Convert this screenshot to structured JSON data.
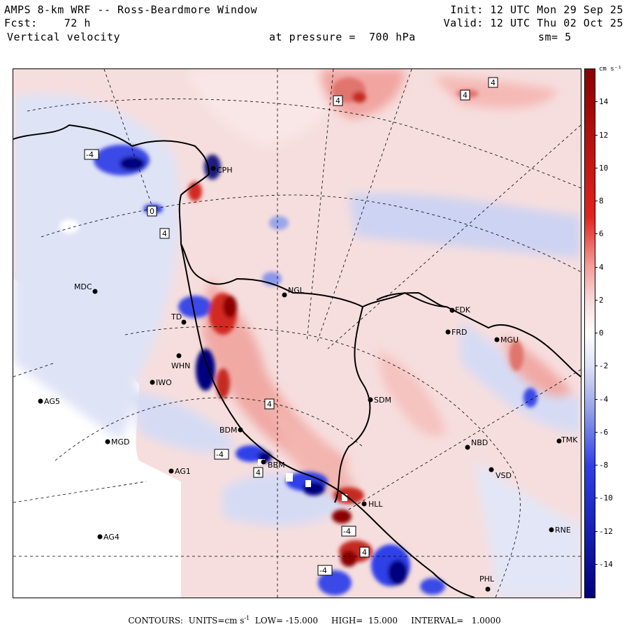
{
  "header": {
    "title": "AMPS 8-km WRF -- Ross-Beardmore Window",
    "fcst": "Fcst:    72 h",
    "field": "Vertical velocity",
    "init": "Init: 12 UTC Mon 29 Sep 25",
    "valid": "Valid: 12 UTC Thu 02 Oct 25",
    "level": "at pressure =  700 hPa",
    "smooth": "sm= 5"
  },
  "colorbar": {
    "units": "cm s⁻¹",
    "ticks": [
      "14",
      "12",
      "10",
      "8",
      "6",
      "4",
      "2",
      "0",
      "-2",
      "-4",
      "-6",
      "-8",
      "-10",
      "-12",
      "-14"
    ],
    "range": [
      -16,
      16
    ],
    "colors": {
      "max": "#8b0000",
      "strong_pos": "#e4231f",
      "mid_pos": "#f59a96",
      "weak_pos": "#f7dcdc",
      "zero": "#ffffff",
      "weak_neg": "#dfe3f6",
      "mid_neg": "#9aa5ea",
      "strong_neg": "#2f3fe8",
      "min": "#00007f"
    }
  },
  "stations": [
    {
      "name": "MDC",
      "icon": "station-dot"
    },
    {
      "name": "NGL",
      "icon": "station-dot"
    },
    {
      "name": "CPH",
      "icon": "station-dot"
    },
    {
      "name": "FDK",
      "icon": "station-dot"
    },
    {
      "name": "FRD",
      "icon": "station-dot"
    },
    {
      "name": "MGU",
      "icon": "station-dot"
    },
    {
      "name": "TD",
      "icon": "station-dot"
    },
    {
      "name": "WHN",
      "icon": "station-dot"
    },
    {
      "name": "IWO",
      "icon": "station-dot"
    },
    {
      "name": "AG5",
      "icon": "station-dot"
    },
    {
      "name": "SDM",
      "icon": "station-dot"
    },
    {
      "name": "BDM",
      "icon": "station-dot"
    },
    {
      "name": "MGD",
      "icon": "station-dot"
    },
    {
      "name": "AG1",
      "icon": "station-dot"
    },
    {
      "name": "NBD",
      "icon": "station-dot"
    },
    {
      "name": "TMK",
      "icon": "station-dot"
    },
    {
      "name": "VSD",
      "icon": "station-dot"
    },
    {
      "name": "HLL",
      "icon": "station-dot"
    },
    {
      "name": "RNE",
      "icon": "station-dot"
    },
    {
      "name": "AG4",
      "icon": "station-dot"
    },
    {
      "name": "PHL",
      "icon": "station-dot"
    },
    {
      "name": "BBM",
      "icon": "station-dot"
    }
  ],
  "contour_labels": [
    "4",
    "4",
    "4",
    "4",
    "4",
    "4",
    "-4",
    "-4",
    "-4",
    "-4",
    "4",
    "0"
  ],
  "footer": {
    "contours": "CONTOURS:",
    "units_label": "UNITS=cm s",
    "units_sup": "-1",
    "low": "LOW= -15.000",
    "high": "HIGH=  15.000",
    "interval": "INTERVAL=   1.0000"
  }
}
